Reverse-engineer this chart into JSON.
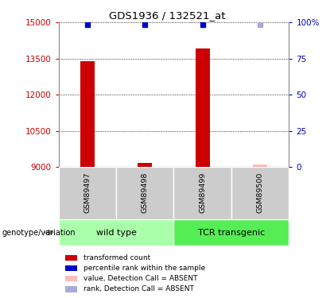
{
  "title": "GDS1936 / 132521_at",
  "samples": [
    "GSM89497",
    "GSM89498",
    "GSM89499",
    "GSM89500"
  ],
  "groups": [
    "wild type",
    "wild type",
    "TCR transgenic",
    "TCR transgenic"
  ],
  "ylim": [
    9000,
    15000
  ],
  "yticks": [
    9000,
    10500,
    12000,
    13500,
    15000
  ],
  "right_yticks": [
    0,
    25,
    50,
    75,
    100
  ],
  "right_ytick_labels": [
    "0",
    "25",
    "50",
    "75",
    "100%"
  ],
  "bar_values": [
    13400,
    9150,
    13900,
    9100
  ],
  "bar_colors": [
    "#cc0000",
    "#cc0000",
    "#cc0000",
    "#ffbbbb"
  ],
  "rank_values": [
    14900,
    14900,
    14900,
    14900
  ],
  "rank_colors": [
    "#0000cc",
    "#0000cc",
    "#0000cc",
    "#aaaadd"
  ],
  "left_label_color": "#cc0000",
  "right_label_color": "#0000bb",
  "wt_color": "#aaffaa",
  "tcr_color": "#55ee55",
  "sample_bg_color": "#cccccc",
  "legend_labels": [
    "transformed count",
    "percentile rank within the sample",
    "value, Detection Call = ABSENT",
    "rank, Detection Call = ABSENT"
  ],
  "legend_colors": [
    "#cc0000",
    "#0000cc",
    "#ffbbbb",
    "#aaaadd"
  ]
}
